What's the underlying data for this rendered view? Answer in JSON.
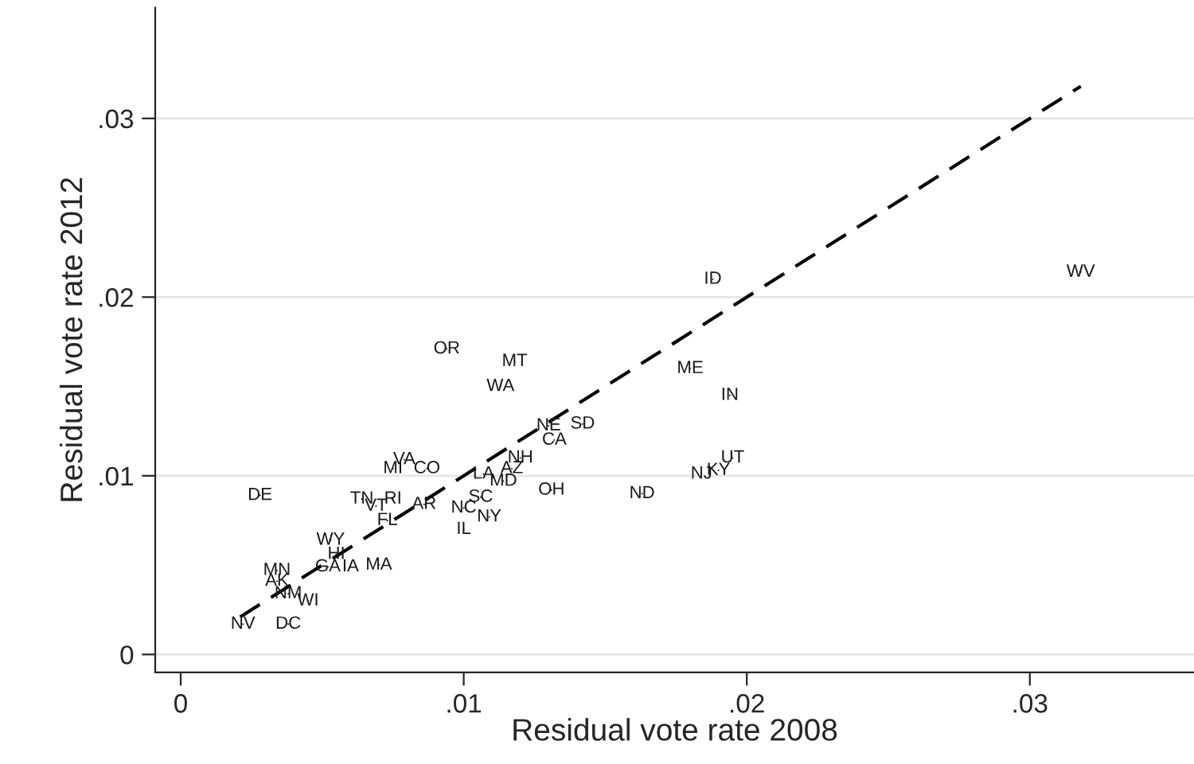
{
  "chart_data": {
    "type": "scatter",
    "xlabel": "Residual vote rate 2008",
    "ylabel": "Residual vote rate 2012",
    "xlim": [
      -0.0009,
      0.0358
    ],
    "ylim": [
      -0.001,
      0.0362
    ],
    "xticks": [
      0,
      {
        "value": 0.01,
        "label": ".01"
      },
      {
        "value": 0.02,
        "label": ".02"
      },
      {
        "value": 0.03,
        "label": ".03"
      }
    ],
    "yticks": [
      0,
      {
        "value": 0.01,
        "label": ".01"
      },
      {
        "value": 0.02,
        "label": ".02"
      },
      {
        "value": 0.03,
        "label": ".03"
      }
    ],
    "grid": "y",
    "legend": false,
    "series": [
      {
        "marker": "none",
        "color": "#1a1a1a",
        "x": [
          0.0028,
          0.0053,
          0.0055,
          0.0034,
          0.0052,
          0.006,
          0.007,
          0.0034,
          0.0038,
          0.0045,
          0.0022,
          0.0038,
          0.0073,
          0.0064,
          0.0075,
          0.0069,
          0.0086,
          0.01,
          0.0106,
          0.0109,
          0.01,
          0.0094,
          0.0118,
          0.0113,
          0.0142,
          0.013,
          0.0132,
          0.012,
          0.0079,
          0.0075,
          0.0087,
          0.0107,
          0.0117,
          0.0114,
          0.0131,
          0.0163,
          0.0188,
          0.0318,
          0.018,
          0.0194,
          0.0195,
          0.0184,
          0.019
        ],
        "values": [
          0.0089,
          0.0064,
          0.0056,
          0.0047,
          0.0049,
          0.0049,
          0.005,
          0.0041,
          0.0034,
          0.003,
          0.0017,
          0.0017,
          0.0075,
          0.0087,
          0.0087,
          0.0083,
          0.0084,
          0.0082,
          0.0088,
          0.0077,
          0.007,
          0.0171,
          0.0164,
          0.015,
          0.0129,
          0.0128,
          0.012,
          0.011,
          0.0109,
          0.0104,
          0.0104,
          0.0101,
          0.0104,
          0.0097,
          0.0092,
          0.009,
          0.021,
          0.0214,
          0.016,
          0.0145,
          0.011,
          0.0101,
          0.0103
        ],
        "value_labels": [
          "DE",
          "WY",
          "HI",
          "MN",
          "GA",
          "IA",
          "MA",
          "AK",
          "NM",
          "WI",
          "NV",
          "DC",
          "FL",
          "TN",
          "RI",
          "VT",
          "AR",
          "NC",
          "SC",
          "NY",
          "IL",
          "OR",
          "MT",
          "WA",
          "SD",
          "NE",
          "CA",
          "NH",
          "VA",
          "MI",
          "CO",
          "LA",
          "AZ",
          "MD",
          "OH",
          "ND",
          "ID",
          "WV",
          "ME",
          "IN",
          "UT",
          "NJ",
          "KY"
        ]
      },
      {
        "type": "line",
        "line_style": "dashed",
        "color": "#000000",
        "x": [
          0.0021,
          0.0318
        ],
        "values": [
          0.0021,
          0.0318
        ]
      }
    ]
  }
}
